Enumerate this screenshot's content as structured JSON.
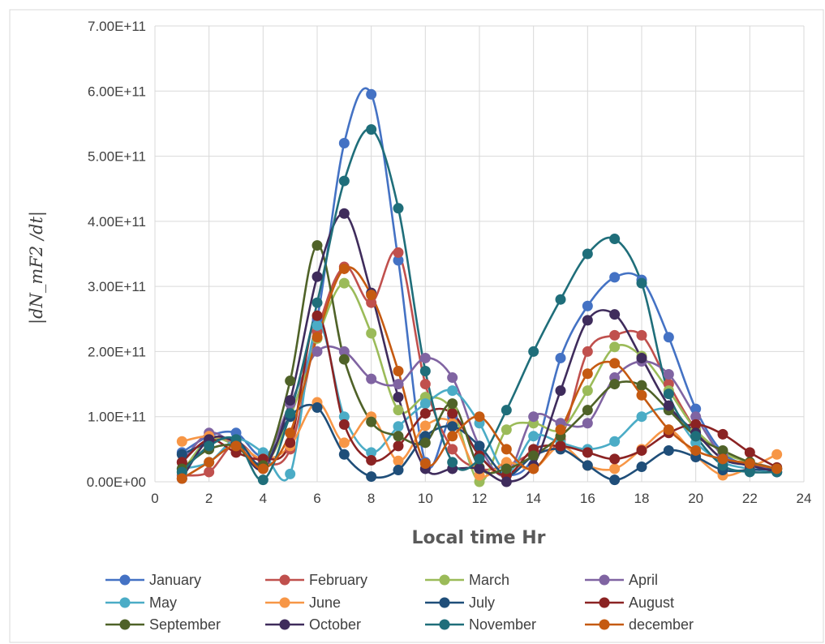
{
  "chart_data": {
    "type": "line",
    "title": "",
    "xlabel": "Local time Hr",
    "ylabel": "|dN_mF2 /dt|",
    "xlim": [
      0,
      24
    ],
    "ylim": [
      0,
      700000000000
    ],
    "x_ticks": [
      "0",
      "2",
      "4",
      "6",
      "8",
      "10",
      "12",
      "14",
      "16",
      "18",
      "20",
      "22",
      "24"
    ],
    "y_ticks": [
      "0.00E+00",
      "1.00E+11",
      "2.00E+11",
      "3.00E+11",
      "4.00E+11",
      "5.00E+11",
      "6.00E+11",
      "7.00E+11"
    ],
    "grid": true,
    "smoothed": true,
    "legend_position": "bottom",
    "x": [
      1,
      2,
      3,
      4,
      5,
      6,
      7,
      8,
      9,
      10,
      11,
      12,
      13,
      14,
      15,
      16,
      17,
      18,
      19,
      20,
      21,
      22,
      23
    ],
    "series": [
      {
        "name": "January",
        "color": "#4472C4",
        "values": [
          45,
          70,
          75,
          40,
          100,
          250,
          520,
          595,
          340,
          30,
          100,
          40,
          10,
          40,
          190,
          270,
          314,
          310,
          222,
          112,
          45,
          25,
          15
        ]
      },
      {
        "name": "February",
        "color": "#C0504D",
        "values": [
          10,
          15,
          60,
          30,
          50,
          230,
          330,
          275,
          352,
          150,
          50,
          20,
          25,
          45,
          65,
          200,
          225,
          225,
          150,
          80,
          35,
          30,
          20
        ]
      },
      {
        "name": "March",
        "color": "#9BBB59",
        "values": [
          15,
          65,
          55,
          25,
          100,
          220,
          305,
          228,
          110,
          130,
          110,
          0,
          80,
          90,
          80,
          140,
          207,
          193,
          140,
          80,
          45,
          30,
          20
        ]
      },
      {
        "name": "April",
        "color": "#8064A2",
        "values": [
          30,
          75,
          55,
          30,
          120,
          200,
          200,
          158,
          150,
          190,
          160,
          55,
          10,
          100,
          90,
          90,
          160,
          185,
          165,
          100,
          40,
          25,
          20
        ]
      },
      {
        "name": "May",
        "color": "#4BACC6",
        "values": [
          20,
          30,
          65,
          45,
          12,
          240,
          100,
          45,
          85,
          120,
          140,
          90,
          15,
          70,
          60,
          50,
          62,
          100,
          110,
          60,
          30,
          20,
          15
        ]
      },
      {
        "name": "June",
        "color": "#F79646",
        "values": [
          62,
          70,
          60,
          35,
          55,
          122,
          60,
          100,
          32,
          86,
          90,
          10,
          30,
          20,
          55,
          25,
          20,
          50,
          80,
          40,
          10,
          22,
          42
        ]
      },
      {
        "name": "July",
        "color": "#1F4E79",
        "values": [
          42,
          60,
          65,
          25,
          100,
          114,
          42,
          8,
          18,
          70,
          85,
          55,
          10,
          40,
          50,
          25,
          3,
          23,
          48,
          38,
          18,
          18,
          20
        ]
      },
      {
        "name": "August",
        "color": "#8B2323",
        "values": [
          30,
          65,
          45,
          35,
          60,
          255,
          88,
          33,
          55,
          105,
          105,
          40,
          10,
          50,
          55,
          45,
          35,
          48,
          75,
          88,
          73,
          45,
          22
        ]
      },
      {
        "name": "September",
        "color": "#4F6228",
        "values": [
          20,
          50,
          55,
          25,
          155,
          363,
          188,
          92,
          70,
          60,
          120,
          22,
          20,
          40,
          70,
          110,
          150,
          148,
          110,
          70,
          48,
          30,
          20
        ]
      },
      {
        "name": "October",
        "color": "#3F2C5C",
        "values": [
          5,
          65,
          60,
          20,
          125,
          315,
          412,
          290,
          130,
          20,
          20,
          20,
          0,
          25,
          140,
          248,
          257,
          190,
          117,
          75,
          35,
          25,
          15
        ]
      },
      {
        "name": "November",
        "color": "#1F6E7A",
        "values": [
          15,
          55,
          65,
          3,
          105,
          275,
          462,
          541,
          420,
          170,
          30,
          35,
          110,
          200,
          280,
          350,
          373,
          305,
          135,
          70,
          25,
          15,
          15
        ]
      },
      {
        "name": "december",
        "color": "#C55A11",
        "values": [
          5,
          30,
          55,
          20,
          75,
          222,
          327,
          287,
          170,
          28,
          70,
          100,
          50,
          20,
          80,
          166,
          182,
          133,
          80,
          48,
          35,
          28,
          20
        ]
      }
    ],
    "unit_scale": 1000000000
  }
}
